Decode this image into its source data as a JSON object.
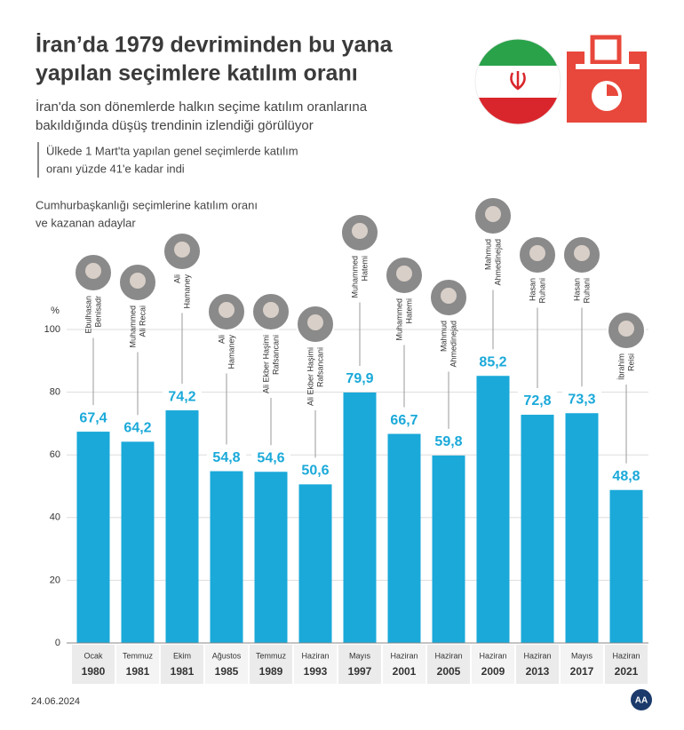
{
  "title": [
    "İran’da 1979 devriminden bu yana",
    "yapılan seçimlere katılım oranı"
  ],
  "subtitle": [
    "İran'da son dönemlerde halkın seçime katılım oranlarına",
    "bakıldığında düşüş trendinin izlendiği görülüyor"
  ],
  "note": [
    "Ülkede 1 Mart'ta yapılan genel seçimlerde katılım",
    "oranı yüzde 41'e kadar indi"
  ],
  "date": "24.06.2024",
  "logo": "AA",
  "chart_data": {
    "type": "bar",
    "caption": [
      "Cumhurbaşkanlığı seçimlerine katılım oranı",
      "ve kazanan adaylar"
    ],
    "y_unit": "%",
    "categories": [
      {
        "month": "Ocak",
        "year": "1980"
      },
      {
        "month": "Temmuz",
        "year": "1981"
      },
      {
        "month": "Ekim",
        "year": "1981"
      },
      {
        "month": "Ağustos",
        "year": "1985"
      },
      {
        "month": "Temmuz",
        "year": "1989"
      },
      {
        "month": "Haziran",
        "year": "1993"
      },
      {
        "month": "Mayıs",
        "year": "1997"
      },
      {
        "month": "Haziran",
        "year": "2001"
      },
      {
        "month": "Haziran",
        "year": "2005"
      },
      {
        "month": "Haziran",
        "year": "2009"
      },
      {
        "month": "Haziran",
        "year": "2013"
      },
      {
        "month": "Mayıs",
        "year": "2017"
      },
      {
        "month": "Haziran",
        "year": "2021"
      }
    ],
    "candidates": [
      [
        "Ebulhasan",
        "Benisadr"
      ],
      [
        "Muhammed",
        "Ali Recai"
      ],
      [
        "Ali",
        "Hamaney"
      ],
      [
        "Ali",
        "Hamaney"
      ],
      [
        "Ali Ekber Haşimi",
        "Rafsancani"
      ],
      [
        "Ali Ekber Haşimi",
        "Rafsancani"
      ],
      [
        "Muhammed",
        "Hatemi"
      ],
      [
        "Muhammed",
        "Hatemi"
      ],
      [
        "Mahmud",
        "Ahmedinejad"
      ],
      [
        "Mahmud",
        "Ahmedinejad"
      ],
      [
        "Hasan",
        "Ruhani"
      ],
      [
        "Hasan",
        "Ruhani"
      ],
      [
        "İbrahim",
        "Reisi"
      ]
    ],
    "values": [
      67.4,
      64.2,
      74.2,
      54.8,
      54.6,
      50.6,
      79.9,
      66.7,
      59.8,
      85.2,
      72.8,
      73.3,
      48.8
    ],
    "value_labels": [
      "67,4",
      "64,2",
      "74,2",
      "54,8",
      "54,6",
      "50,6",
      "79,9",
      "66,7",
      "59,8",
      "85,2",
      "72,8",
      "73,3",
      "48,8"
    ],
    "color": "#1aa9d9",
    "ylim": [
      0,
      100
    ],
    "yticks": [
      0,
      20,
      40,
      60,
      80,
      100
    ],
    "grid": true
  }
}
